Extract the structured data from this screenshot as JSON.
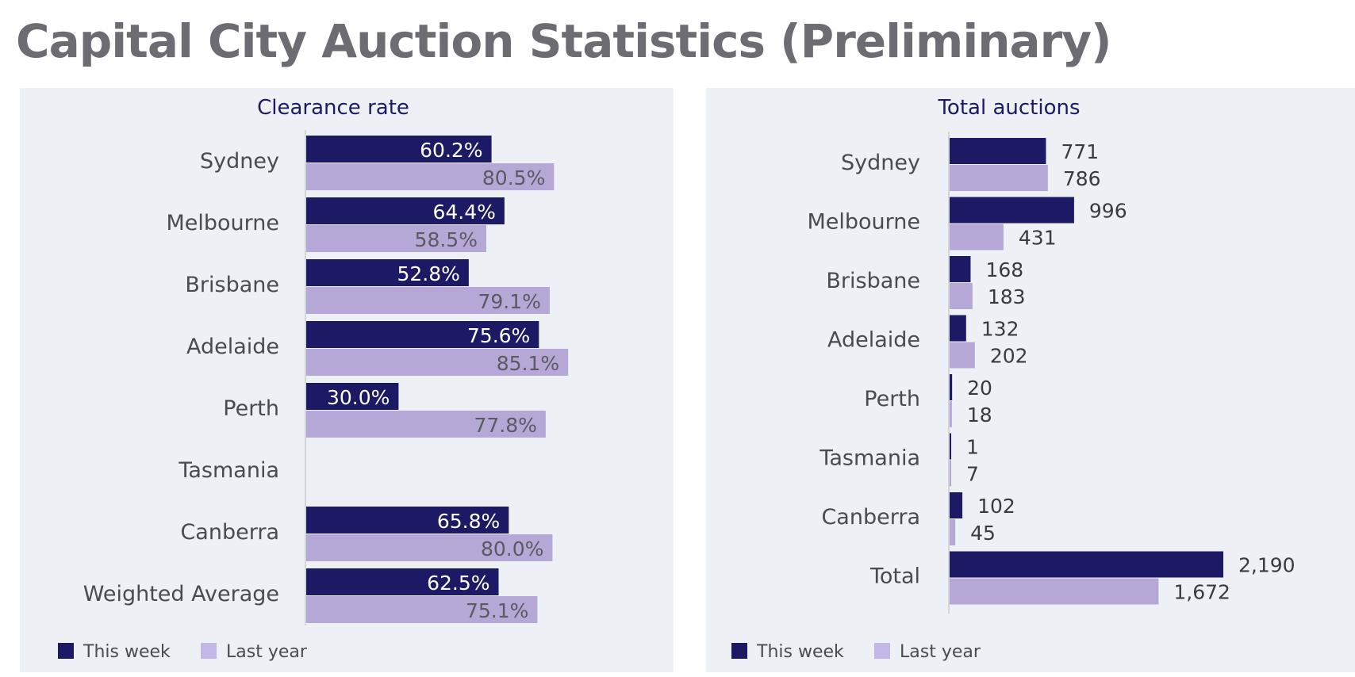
{
  "page": {
    "title": "Capital City Auction Statistics (Preliminary)"
  },
  "colors": {
    "this_week": "#1c1a64",
    "last_year": "#b6a8d6",
    "panel_bg": "#edf0f4",
    "label": "#4a4a50",
    "title": "#6c6c72",
    "chart_title": "#1c1a64"
  },
  "chart_data": [
    {
      "type": "bar",
      "orientation": "horizontal",
      "title": "Clearance rate",
      "categories": [
        "Sydney",
        "Melbourne",
        "Brisbane",
        "Adelaide",
        "Perth",
        "Tasmania",
        "Canberra",
        "Weighted Average"
      ],
      "series": [
        {
          "name": "This week",
          "values": [
            60.2,
            64.4,
            52.8,
            75.6,
            30.0,
            null,
            65.8,
            62.5
          ],
          "labels": [
            "60.2%",
            "64.4%",
            "52.8%",
            "75.6%",
            "30.0%",
            "",
            "65.8%",
            "62.5%"
          ]
        },
        {
          "name": "Last year",
          "values": [
            80.5,
            58.5,
            79.1,
            85.1,
            77.8,
            null,
            80.0,
            75.1
          ],
          "labels": [
            "80.5%",
            "58.5%",
            "79.1%",
            "85.1%",
            "77.8%",
            "",
            "80.0%",
            "75.1%"
          ]
        }
      ],
      "xlim": [
        0,
        100
      ],
      "legend": "bottom-left"
    },
    {
      "type": "bar",
      "orientation": "horizontal",
      "title": "Total auctions",
      "categories": [
        "Sydney",
        "Melbourne",
        "Brisbane",
        "Adelaide",
        "Perth",
        "Tasmania",
        "Canberra",
        "Total"
      ],
      "series": [
        {
          "name": "This week",
          "values": [
            771,
            996,
            168,
            132,
            20,
            1,
            102,
            2190
          ],
          "labels": [
            "771",
            "996",
            "168",
            "132",
            "20",
            "1",
            "102",
            "2,190"
          ]
        },
        {
          "name": "Last year",
          "values": [
            786,
            431,
            183,
            202,
            18,
            7,
            45,
            1672
          ],
          "labels": [
            "786",
            "431",
            "183",
            "202",
            "18",
            "7",
            "45",
            "1,672"
          ]
        }
      ],
      "xlim": [
        0,
        3200
      ],
      "legend": "bottom-left"
    }
  ]
}
